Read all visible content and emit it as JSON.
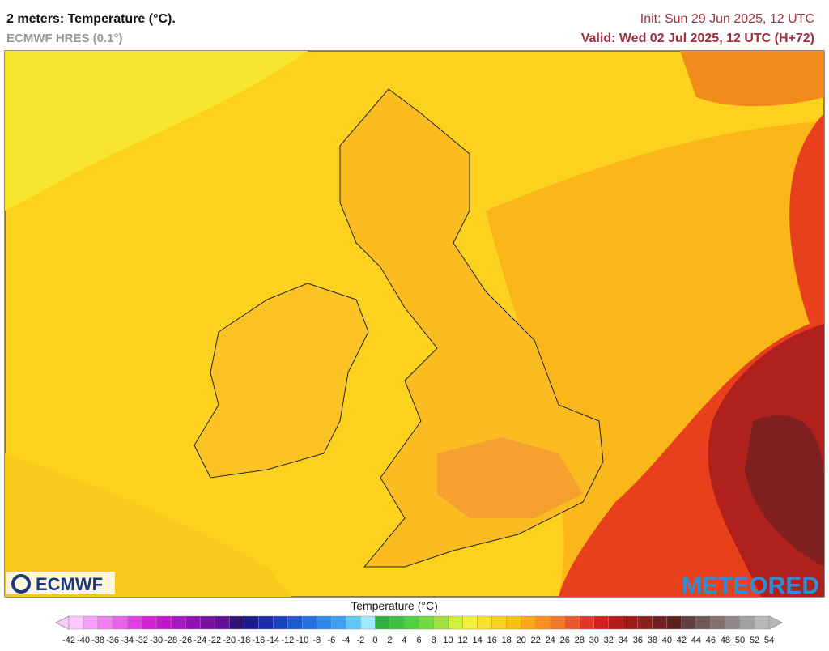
{
  "header": {
    "title": "2 meters: Temperature (°C).",
    "model": "ECMWF HRES (0.1°)",
    "init": "Init: Sun 29 Jun 2025, 12 UTC",
    "valid": "Valid: Wed 02 Jul 2025, 12 UTC (H+72)"
  },
  "logos": {
    "left": "ECMWF",
    "right": "METEORED"
  },
  "legend": {
    "title": "Temperature (°C)",
    "ticks": [
      -42,
      -40,
      -38,
      -36,
      -34,
      -32,
      -30,
      -28,
      -26,
      -24,
      -22,
      -20,
      -18,
      -16,
      -14,
      -12,
      -10,
      -8,
      -6,
      -4,
      -2,
      0,
      2,
      4,
      6,
      8,
      10,
      12,
      14,
      16,
      18,
      20,
      22,
      24,
      26,
      28,
      30,
      32,
      34,
      36,
      38,
      40,
      42,
      44,
      46,
      48,
      50,
      52,
      54
    ],
    "colors": [
      "#ffc8ff",
      "#f8a0f8",
      "#f080f0",
      "#e860e8",
      "#e040e0",
      "#d020d0",
      "#c018c8",
      "#a818c0",
      "#9010b0",
      "#7810a0",
      "#601090",
      "#301070",
      "#1a1a8c",
      "#1a2aa8",
      "#1a40c0",
      "#2058d0",
      "#2870e0",
      "#3088e8",
      "#40a0f0",
      "#60c8f0",
      "#a0e8f8",
      "#30b040",
      "#40c040",
      "#50d040",
      "#70d840",
      "#a0e040",
      "#d0f040",
      "#f0f040",
      "#f8e030",
      "#f8d020",
      "#f8c010",
      "#f8a818",
      "#f89020",
      "#f07828",
      "#e85828",
      "#e03828",
      "#d02020",
      "#b81818",
      "#a01818",
      "#882020",
      "#702020",
      "#5a2020",
      "#604040",
      "#705858",
      "#807070",
      "#908888",
      "#a0a0a0",
      "#b8b8b8"
    ]
  }
}
